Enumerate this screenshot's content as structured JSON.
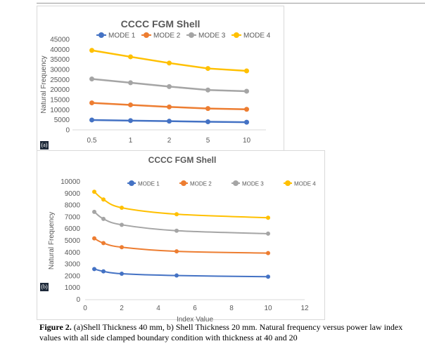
{
  "caption": {
    "label": "Figure 2.",
    "text": " (a)Shell Thickness 40 mm, b) Shell Thickness 20 mm. Natural frequency versus power law index values with all side clamped boundary condition with thickness at 40 and 20"
  },
  "chart_data": [
    {
      "id": "a",
      "panel_label": "(a)",
      "type": "line",
      "title": "CCCC FGM Shell",
      "ylabel": "Natural Frequency",
      "xlabel": "",
      "categories": [
        "0.5",
        "1",
        "2",
        "5",
        "10"
      ],
      "ylim": [
        0,
        45000
      ],
      "yticks": [
        0,
        5000,
        10000,
        15000,
        20000,
        25000,
        30000,
        35000,
        40000,
        45000
      ],
      "grid": false,
      "legend_position": "top",
      "series": [
        {
          "name": "MODE 1",
          "color": "#4472c4",
          "values": [
            4900,
            4600,
            4300,
            4000,
            3800
          ]
        },
        {
          "name": "MODE 2",
          "color": "#ed7d31",
          "values": [
            13400,
            12400,
            11400,
            10600,
            10200
          ]
        },
        {
          "name": "MODE 3",
          "color": "#a5a5a5",
          "values": [
            25300,
            23400,
            21500,
            19800,
            19200
          ]
        },
        {
          "name": "MODE 4",
          "color": "#ffc000",
          "values": [
            39500,
            36300,
            33200,
            30500,
            29300
          ]
        }
      ]
    },
    {
      "id": "b",
      "panel_label": "(b)",
      "type": "scatter",
      "title": "CCCC FGM Shell",
      "ylabel": "Natural Frequency",
      "xlabel": "Index Value",
      "xlim": [
        0,
        12
      ],
      "xticks": [
        0,
        2,
        4,
        6,
        8,
        10,
        12
      ],
      "ylim": [
        0,
        10000
      ],
      "yticks": [
        0,
        1000,
        2000,
        3000,
        4000,
        5000,
        6000,
        7000,
        8000,
        9000,
        10000
      ],
      "grid": false,
      "legend_position": "top",
      "x": [
        0.5,
        1,
        2,
        5,
        10
      ],
      "series": [
        {
          "name": "MODE 1",
          "color": "#4472c4",
          "values": [
            2600,
            2400,
            2200,
            2050,
            1950
          ]
        },
        {
          "name": "MODE 2",
          "color": "#ed7d31",
          "values": [
            5200,
            4800,
            4450,
            4100,
            3950
          ]
        },
        {
          "name": "MODE 3",
          "color": "#a5a5a5",
          "values": [
            7450,
            6850,
            6350,
            5850,
            5600
          ]
        },
        {
          "name": "MODE 4",
          "color": "#ffc000",
          "values": [
            9150,
            8500,
            7800,
            7250,
            6950
          ]
        }
      ]
    }
  ]
}
